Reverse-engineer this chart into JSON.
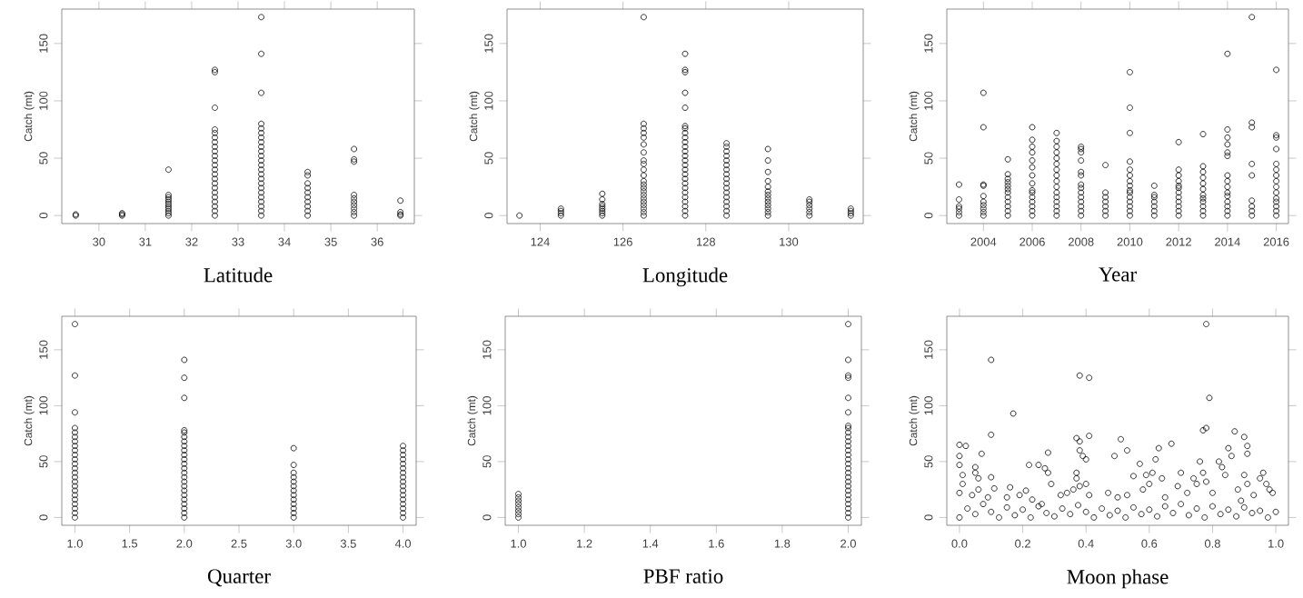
{
  "chart_data": [
    {
      "type": "scatter",
      "xlabel": "Latitude",
      "ylabel": "Catch (mt)",
      "xlim": [
        29.2,
        36.8
      ],
      "ylim": [
        -7,
        180
      ],
      "xticks": [
        30,
        31,
        32,
        33,
        34,
        35,
        36
      ],
      "yticks": [
        0,
        50,
        100,
        150
      ],
      "marker": "circle",
      "series": [
        {
          "color": "#000000",
          "x": [
            29.5,
            29.5,
            30.5,
            30.5,
            30.5,
            31.5,
            31.5,
            31.5,
            31.5,
            31.5,
            31.5,
            31.5,
            31.5,
            31.5,
            31.5,
            31.5,
            32.5,
            32.5,
            32.5,
            32.5,
            32.5,
            32.5,
            32.5,
            32.5,
            32.5,
            32.5,
            32.5,
            32.5,
            32.5,
            32.5,
            32.5,
            32.5,
            32.5,
            32.5,
            32.5,
            32.5,
            32.5,
            32.5,
            32.5,
            33.5,
            33.5,
            33.5,
            33.5,
            33.5,
            33.5,
            33.5,
            33.5,
            33.5,
            33.5,
            33.5,
            33.5,
            33.5,
            33.5,
            33.5,
            33.5,
            33.5,
            33.5,
            33.5,
            33.5,
            33.5,
            33.5,
            33.5,
            33.5,
            34.5,
            34.5,
            34.5,
            34.5,
            34.5,
            34.5,
            34.5,
            34.5,
            34.5,
            34.5,
            35.5,
            35.5,
            35.5,
            35.5,
            35.5,
            35.5,
            35.5,
            35.5,
            35.5,
            35.5,
            36.5,
            36.5,
            36.5,
            36.5
          ],
          "values": [
            0,
            1,
            0,
            1,
            2,
            0,
            2,
            4,
            6,
            8,
            10,
            12,
            14,
            16,
            18,
            40,
            0,
            4,
            8,
            12,
            16,
            20,
            24,
            28,
            32,
            36,
            40,
            44,
            48,
            52,
            56,
            60,
            64,
            68,
            72,
            75,
            94,
            125,
            127,
            0,
            4,
            8,
            12,
            16,
            20,
            24,
            28,
            32,
            36,
            40,
            44,
            48,
            52,
            56,
            60,
            64,
            68,
            72,
            76,
            80,
            107,
            141,
            173,
            0,
            4,
            8,
            12,
            16,
            20,
            24,
            28,
            35,
            38,
            0,
            3,
            6,
            9,
            12,
            15,
            18,
            47,
            49,
            58,
            0,
            1,
            3,
            13
          ]
        }
      ]
    },
    {
      "type": "scatter",
      "xlabel": "Longitude",
      "ylabel": "Catch (mt)",
      "xlim": [
        123.2,
        131.8
      ],
      "ylim": [
        -7,
        180
      ],
      "xticks": [
        124,
        126,
        128,
        130
      ],
      "yticks": [
        0,
        50,
        100,
        150
      ],
      "marker": "circle",
      "series": [
        {
          "color": "#000000",
          "x": [
            123.5,
            124.5,
            124.5,
            124.5,
            124.5,
            125.5,
            125.5,
            125.5,
            125.5,
            125.5,
            125.5,
            125.5,
            125.5,
            126.5,
            126.5,
            126.5,
            126.5,
            126.5,
            126.5,
            126.5,
            126.5,
            126.5,
            126.5,
            126.5,
            126.5,
            126.5,
            126.5,
            126.5,
            126.5,
            126.5,
            126.5,
            126.5,
            126.5,
            126.5,
            126.5,
            127.5,
            127.5,
            127.5,
            127.5,
            127.5,
            127.5,
            127.5,
            127.5,
            127.5,
            127.5,
            127.5,
            127.5,
            127.5,
            127.5,
            127.5,
            127.5,
            127.5,
            127.5,
            127.5,
            127.5,
            127.5,
            127.5,
            127.5,
            127.5,
            127.5,
            127.5,
            128.5,
            128.5,
            128.5,
            128.5,
            128.5,
            128.5,
            128.5,
            128.5,
            128.5,
            128.5,
            128.5,
            128.5,
            128.5,
            128.5,
            128.5,
            128.5,
            128.5,
            129.5,
            129.5,
            129.5,
            129.5,
            129.5,
            129.5,
            129.5,
            129.5,
            129.5,
            129.5,
            129.5,
            129.5,
            129.5,
            130.5,
            130.5,
            130.5,
            130.5,
            130.5,
            130.5,
            131.5,
            131.5,
            131.5,
            131.5
          ],
          "values": [
            0,
            0,
            2,
            4,
            6,
            0,
            2,
            4,
            6,
            8,
            10,
            14,
            19,
            0,
            3,
            6,
            9,
            12,
            15,
            18,
            21,
            24,
            27,
            30,
            35,
            40,
            45,
            48,
            55,
            62,
            68,
            72,
            76,
            80,
            173,
            0,
            4,
            8,
            12,
            16,
            20,
            24,
            28,
            32,
            36,
            40,
            44,
            48,
            52,
            56,
            60,
            64,
            68,
            72,
            76,
            78,
            94,
            107,
            125,
            127,
            141,
            0,
            4,
            8,
            12,
            16,
            20,
            24,
            28,
            32,
            36,
            40,
            44,
            48,
            52,
            56,
            60,
            63,
            0,
            3,
            6,
            9,
            12,
            15,
            18,
            21,
            25,
            30,
            38,
            48,
            58,
            0,
            3,
            6,
            9,
            12,
            14,
            0,
            2,
            4,
            6
          ]
        }
      ]
    },
    {
      "type": "scatter",
      "xlabel": "Year",
      "ylabel": "Catch (mt)",
      "xlim": [
        2002.5,
        2016.5
      ],
      "ylim": [
        -7,
        180
      ],
      "xticks": [
        2004,
        2006,
        2008,
        2010,
        2012,
        2014,
        2016
      ],
      "yticks": [
        0,
        50,
        100,
        150
      ],
      "marker": "circle",
      "series": [
        {
          "color": "#000000",
          "x": [
            2003,
            2003,
            2003,
            2003,
            2003,
            2003,
            2004,
            2004,
            2004,
            2004,
            2004,
            2004,
            2004,
            2004,
            2004,
            2004,
            2005,
            2005,
            2005,
            2005,
            2005,
            2005,
            2005,
            2005,
            2005,
            2005,
            2005,
            2005,
            2006,
            2006,
            2006,
            2006,
            2006,
            2006,
            2006,
            2006,
            2006,
            2006,
            2006,
            2006,
            2006,
            2006,
            2006,
            2007,
            2007,
            2007,
            2007,
            2007,
            2007,
            2007,
            2007,
            2007,
            2007,
            2007,
            2007,
            2007,
            2007,
            2007,
            2007,
            2008,
            2008,
            2008,
            2008,
            2008,
            2008,
            2008,
            2008,
            2008,
            2008,
            2008,
            2008,
            2008,
            2008,
            2009,
            2009,
            2009,
            2009,
            2009,
            2009,
            2009,
            2010,
            2010,
            2010,
            2010,
            2010,
            2010,
            2010,
            2010,
            2010,
            2010,
            2010,
            2010,
            2010,
            2010,
            2010,
            2011,
            2011,
            2011,
            2011,
            2011,
            2011,
            2011,
            2012,
            2012,
            2012,
            2012,
            2012,
            2012,
            2012,
            2012,
            2012,
            2012,
            2012,
            2012,
            2013,
            2013,
            2013,
            2013,
            2013,
            2013,
            2013,
            2013,
            2013,
            2013,
            2013,
            2013,
            2014,
            2014,
            2014,
            2014,
            2014,
            2014,
            2014,
            2014,
            2014,
            2014,
            2014,
            2014,
            2014,
            2014,
            2014,
            2015,
            2015,
            2015,
            2015,
            2015,
            2015,
            2015,
            2015,
            2015,
            2016,
            2016,
            2016,
            2016,
            2016,
            2016,
            2016,
            2016,
            2016,
            2016,
            2016,
            2016,
            2016,
            2016,
            2016
          ],
          "values": [
            0,
            3,
            6,
            8,
            14,
            27,
            0,
            3,
            6,
            9,
            12,
            17,
            26,
            27,
            77,
            107,
            0,
            4,
            8,
            12,
            16,
            20,
            23,
            26,
            29,
            32,
            36,
            49,
            0,
            4,
            8,
            12,
            16,
            20,
            22,
            28,
            35,
            42,
            48,
            55,
            60,
            66,
            77,
            0,
            4,
            8,
            12,
            16,
            20,
            25,
            30,
            35,
            40,
            45,
            50,
            55,
            60,
            65,
            72,
            0,
            4,
            8,
            12,
            16,
            20,
            24,
            27,
            35,
            38,
            48,
            55,
            58,
            60,
            0,
            4,
            8,
            12,
            16,
            20,
            44,
            0,
            4,
            8,
            12,
            16,
            20,
            22,
            26,
            30,
            35,
            40,
            47,
            72,
            94,
            125,
            0,
            4,
            8,
            12,
            16,
            18,
            26,
            0,
            4,
            8,
            12,
            16,
            20,
            24,
            26,
            30,
            35,
            40,
            64,
            0,
            4,
            8,
            12,
            15,
            18,
            23,
            28,
            33,
            38,
            43,
            71,
            0,
            4,
            8,
            12,
            17,
            20,
            25,
            30,
            35,
            52,
            55,
            62,
            68,
            75,
            141,
            0,
            4,
            8,
            13,
            35,
            45,
            77,
            81,
            173,
            0,
            4,
            8,
            12,
            15,
            20,
            25,
            30,
            35,
            40,
            45,
            58,
            68,
            70,
            127
          ]
        }
      ]
    },
    {
      "type": "scatter",
      "xlabel": "Quarter",
      "ylabel": "Catch (mt)",
      "xlim": [
        0.88,
        4.12
      ],
      "ylim": [
        -7,
        180
      ],
      "xticks": [
        {
          "value": 1,
          "label": "1.0"
        },
        1.5,
        {
          "value": 2,
          "label": "2.0"
        },
        2.5,
        {
          "value": 3,
          "label": "3.0"
        },
        3.5,
        {
          "value": 4,
          "label": "4.0"
        }
      ],
      "yticks": [
        0,
        50,
        100,
        150
      ],
      "marker": "circle",
      "series": [
        {
          "color": "#000000",
          "x": [
            1,
            1,
            1,
            1,
            1,
            1,
            1,
            1,
            1,
            1,
            1,
            1,
            1,
            1,
            1,
            1,
            1,
            1,
            1,
            1,
            1,
            1,
            1,
            1,
            2,
            2,
            2,
            2,
            2,
            2,
            2,
            2,
            2,
            2,
            2,
            2,
            2,
            2,
            2,
            2,
            2,
            2,
            2,
            2,
            2,
            2,
            2,
            2,
            3,
            3,
            3,
            3,
            3,
            3,
            3,
            3,
            3,
            3,
            3,
            3,
            3,
            4,
            4,
            4,
            4,
            4,
            4,
            4,
            4,
            4,
            4,
            4,
            4,
            4,
            4,
            4,
            4,
            4
          ],
          "values": [
            0,
            4,
            8,
            12,
            16,
            20,
            24,
            28,
            32,
            36,
            40,
            44,
            48,
            52,
            56,
            60,
            64,
            68,
            72,
            76,
            80,
            94,
            127,
            173,
            0,
            4,
            8,
            12,
            16,
            20,
            24,
            28,
            32,
            36,
            40,
            44,
            48,
            52,
            56,
            60,
            64,
            68,
            72,
            76,
            78,
            107,
            125,
            141,
            0,
            4,
            8,
            12,
            16,
            20,
            24,
            28,
            32,
            36,
            40,
            47,
            62,
            0,
            4,
            8,
            12,
            16,
            20,
            24,
            28,
            32,
            36,
            40,
            44,
            48,
            52,
            56,
            60,
            64
          ]
        }
      ]
    },
    {
      "type": "scatter",
      "xlabel": "PBF ratio",
      "ylabel": "Catch (mt)",
      "xlim": [
        0.96,
        2.04
      ],
      "ylim": [
        -7,
        180
      ],
      "xticks": [
        {
          "value": 1,
          "label": "1.0"
        },
        1.2,
        1.4,
        1.6,
        1.8,
        {
          "value": 2,
          "label": "2.0"
        }
      ],
      "yticks": [
        0,
        50,
        100,
        150
      ],
      "marker": "circle",
      "series": [
        {
          "color": "#000000",
          "x": [
            1,
            1,
            1,
            1,
            1,
            1,
            1,
            1,
            2,
            2,
            2,
            2,
            2,
            2,
            2,
            2,
            2,
            2,
            2,
            2,
            2,
            2,
            2,
            2,
            2,
            2,
            2,
            2,
            2,
            2,
            2,
            2,
            2,
            2,
            2,
            2
          ],
          "values": [
            0,
            3,
            6,
            9,
            12,
            15,
            18,
            21,
            0,
            4,
            8,
            12,
            16,
            20,
            24,
            28,
            32,
            36,
            40,
            44,
            48,
            52,
            56,
            60,
            64,
            68,
            72,
            76,
            80,
            82,
            94,
            107,
            125,
            127,
            141,
            173
          ]
        }
      ]
    },
    {
      "type": "scatter",
      "xlabel": "Moon phase",
      "ylabel": "Catch (mt)",
      "xlim": [
        -0.04,
        1.04
      ],
      "ylim": [
        -7,
        180
      ],
      "xticks": [
        {
          "value": 0,
          "label": "0.0"
        },
        0.2,
        0.4,
        0.6,
        0.8,
        {
          "value": 1,
          "label": "1.0"
        }
      ],
      "yticks": [
        0,
        50,
        100,
        150
      ],
      "marker": "circle",
      "series": [
        {
          "color": "#000000",
          "x": [
            0.0,
            0.0,
            0.0,
            0.01,
            0.02,
            0.01,
            0.0,
            0.05,
            0.05,
            0.06,
            0.07,
            0.06,
            0.04,
            0.1,
            0.1,
            0.1,
            0.11,
            0.09,
            0.17,
            0.16,
            0.15,
            0.19,
            0.22,
            0.21,
            0.23,
            0.25,
            0.27,
            0.28,
            0.28,
            0.29,
            0.26,
            0.32,
            0.34,
            0.36,
            0.37,
            0.38,
            0.38,
            0.38,
            0.37,
            0.37,
            0.38,
            0.39,
            0.4,
            0.41,
            0.41,
            0.4,
            0.41,
            0.47,
            0.49,
            0.5,
            0.51,
            0.53,
            0.53,
            0.55,
            0.57,
            0.58,
            0.59,
            0.6,
            0.61,
            0.62,
            0.63,
            0.64,
            0.65,
            0.67,
            0.69,
            0.7,
            0.72,
            0.74,
            0.75,
            0.76,
            0.77,
            0.78,
            0.78,
            0.79,
            0.77,
            0.78,
            0.8,
            0.82,
            0.83,
            0.84,
            0.85,
            0.86,
            0.87,
            0.88,
            0.89,
            0.9,
            0.91,
            0.91,
            0.9,
            0.91,
            0.93,
            0.95,
            0.96,
            0.97,
            0.98,
            0.99,
            0.0,
            0.025,
            0.05,
            0.075,
            0.1,
            0.125,
            0.15,
            0.175,
            0.2,
            0.225,
            0.25,
            0.275,
            0.3,
            0.325,
            0.35,
            0.375,
            0.4,
            0.425,
            0.45,
            0.475,
            0.5,
            0.525,
            0.55,
            0.575,
            0.6,
            0.625,
            0.65,
            0.675,
            0.7,
            0.725,
            0.75,
            0.775,
            0.8,
            0.825,
            0.85,
            0.875,
            0.9,
            0.925,
            0.95,
            0.975,
            1.0
          ],
          "values": [
            65,
            55,
            47,
            38,
            64,
            30,
            22,
            45,
            40,
            35,
            57,
            25,
            20,
            141,
            74,
            36,
            26,
            18,
            93,
            27,
            18,
            20,
            47,
            24,
            16,
            47,
            44,
            58,
            40,
            30,
            12,
            20,
            22,
            25,
            71,
            127,
            68,
            60,
            40,
            35,
            28,
            55,
            52,
            125,
            73,
            30,
            20,
            22,
            55,
            18,
            70,
            60,
            20,
            37,
            48,
            25,
            38,
            30,
            40,
            52,
            62,
            35,
            18,
            66,
            28,
            40,
            22,
            35,
            30,
            50,
            78,
            173,
            80,
            107,
            40,
            32,
            22,
            50,
            45,
            38,
            62,
            55,
            77,
            25,
            15,
            72,
            64,
            57,
            38,
            30,
            20,
            35,
            40,
            30,
            25,
            22,
            0,
            8,
            3,
            12,
            5,
            0,
            9,
            2,
            7,
            0,
            10,
            4,
            1,
            8,
            3,
            11,
            5,
            0,
            8,
            2,
            6,
            0,
            9,
            3,
            7,
            1,
            10,
            4,
            12,
            2,
            8,
            0,
            10,
            3,
            7,
            1,
            9,
            4,
            6,
            0,
            5
          ]
        }
      ]
    }
  ]
}
